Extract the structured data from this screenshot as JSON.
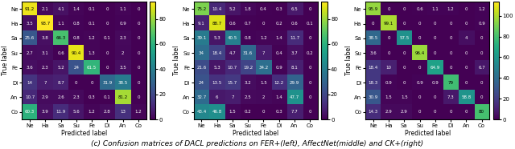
{
  "chart_data": [
    {
      "type": "heatmap",
      "categories": [
        "Ne",
        "Ha",
        "Sa",
        "Su",
        "Fe",
        "Di",
        "An",
        "Co"
      ],
      "x_label": "Predicted label",
      "y_label": "True label",
      "color": "viridis",
      "values": [
        [
          91.2,
          2.1,
          4.1,
          1.4,
          0.1,
          0,
          1.1,
          0
        ],
        [
          3.5,
          93.7,
          1.1,
          0.8,
          0.1,
          0,
          0.9,
          0
        ],
        [
          25.6,
          3.8,
          66.3,
          0.8,
          1.2,
          0.1,
          2.3,
          0
        ],
        [
          2.7,
          3.1,
          0.6,
          90.4,
          1.3,
          0,
          2,
          0
        ],
        [
          3.6,
          2.3,
          5.2,
          24,
          61.5,
          0,
          3.5,
          0
        ],
        [
          14,
          7,
          8.7,
          0,
          0,
          31.9,
          38.5,
          0
        ],
        [
          10.7,
          2.9,
          2.6,
          2.3,
          0.3,
          0.1,
          81.2,
          0
        ],
        [
          60.3,
          3.9,
          11.9,
          5.6,
          1.2,
          2.8,
          13,
          1.2
        ]
      ],
      "colorbar_lim": [
        0,
        93.7
      ],
      "colorbar_ticks": [
        0,
        20,
        40,
        60,
        80
      ],
      "data_labels": true
    },
    {
      "type": "heatmap",
      "categories": [
        "Ne",
        "Ha",
        "Sa",
        "Su",
        "Fe",
        "Di",
        "An",
        "Co"
      ],
      "x_label": "Predicted label",
      "y_label": "True label",
      "color": "viridis",
      "values": [
        [
          75.2,
          10.4,
          5.2,
          1.8,
          0.4,
          0.3,
          6.5,
          0
        ],
        [
          9.1,
          88.7,
          0.6,
          0.7,
          0,
          0.2,
          0.6,
          0.1
        ],
        [
          39.1,
          5.3,
          40.5,
          0.8,
          1.2,
          1.4,
          11.7,
          0
        ],
        [
          34,
          18.4,
          4.7,
          31.6,
          7,
          0.4,
          3.7,
          0.2
        ],
        [
          21.6,
          5.3,
          10.7,
          19.2,
          34.2,
          0.9,
          8.1,
          0
        ],
        [
          24,
          13.5,
          15.7,
          3.2,
          1.5,
          12.2,
          29.9,
          0
        ],
        [
          32.7,
          6,
          7,
          2.5,
          2,
          1.4,
          47.7,
          0
        ],
        [
          43.4,
          46.8,
          1.5,
          0.2,
          0,
          0.3,
          7.7,
          0
        ]
      ],
      "colorbar_lim": [
        0,
        93.7
      ],
      "colorbar_ticks": [
        0,
        20,
        40,
        60,
        80
      ],
      "data_labels": true
    },
    {
      "type": "heatmap",
      "categories": [
        "Ne",
        "Ha",
        "Sa",
        "Su",
        "Fe",
        "Di",
        "An",
        "Co"
      ],
      "x_label": "Predicted label",
      "y_label": "True label",
      "color": "viridis",
      "values": [
        [
          95.9,
          0,
          0,
          0.6,
          1.1,
          1.2,
          0,
          1.2
        ],
        [
          0,
          99.1,
          0,
          0,
          0,
          0,
          0,
          0.9
        ],
        [
          38.5,
          0,
          57.5,
          0,
          0,
          0,
          4,
          0
        ],
        [
          3.6,
          0,
          0,
          96.4,
          0,
          0,
          0,
          0
        ],
        [
          18.4,
          10,
          0,
          0,
          64.9,
          0,
          0,
          6.7
        ],
        [
          18.3,
          0.9,
          0,
          0.9,
          0.9,
          79,
          0,
          0
        ],
        [
          30.9,
          1.5,
          1.5,
          0,
          0,
          7.3,
          58.8,
          0
        ],
        [
          14.3,
          2.9,
          2.9,
          0,
          0,
          0,
          0,
          80
        ]
      ],
      "colorbar_lim": [
        0,
        113.7
      ],
      "colorbar_ticks": [
        0,
        20,
        40,
        60,
        80,
        100
      ],
      "data_labels": true
    }
  ],
  "caption": "(c) Confusion matrices of DACL predictions on FER+(left), AffectNet(middle) and CK+(right)"
}
